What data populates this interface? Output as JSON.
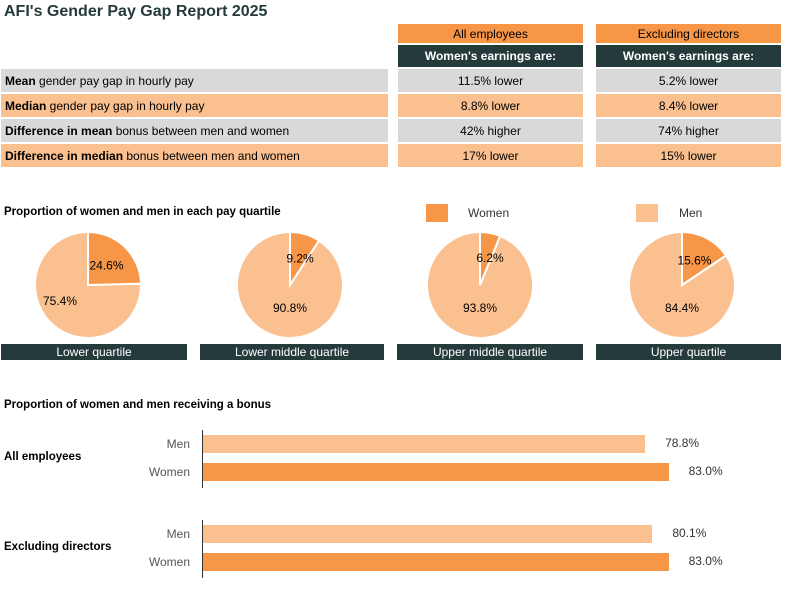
{
  "title": "AFI's Gender Pay Gap Report 2025",
  "table": {
    "columns": [
      "All employees",
      "Excluding directors"
    ],
    "subheader": "Women's earnings are:",
    "rows": [
      {
        "bold": "Mean",
        "rest": " gender pay gap in hourly pay",
        "values": [
          "11.5% lower",
          "5.2% lower"
        ]
      },
      {
        "bold": "Median",
        "rest": " gender pay gap in hourly pay",
        "values": [
          "8.8% lower",
          "8.4% lower"
        ]
      },
      {
        "bold": "Difference in mean",
        "rest": " bonus between men and women",
        "values": [
          "42% higher",
          "74% higher"
        ]
      },
      {
        "bold": "Difference in median",
        "rest": " bonus between men and women",
        "values": [
          "17% lower",
          "15% lower"
        ]
      }
    ]
  },
  "colors": {
    "women": "#f79646",
    "men": "#fac090",
    "gray": "#d9d9d9",
    "dark": "#253a3a"
  },
  "chart_data": [
    {
      "type": "pie",
      "title": "Proportion of women and men in each pay quartile",
      "legend": [
        "Women",
        "Men"
      ],
      "charts": [
        {
          "label": "Lower quartile",
          "women": 24.6,
          "men": 75.4,
          "women_label": "24.6%",
          "men_label": "75.4%"
        },
        {
          "label": "Lower middle quartile",
          "women": 9.2,
          "men": 90.8,
          "women_label": "9.2%",
          "men_label": "90.8%"
        },
        {
          "label": "Upper middle quartile",
          "women": 6.2,
          "men": 93.8,
          "women_label": "6.2%",
          "men_label": "93.8%"
        },
        {
          "label": "Upper quartile",
          "women": 15.6,
          "men": 84.4,
          "women_label": "15.6%",
          "men_label": "84.4%"
        }
      ]
    },
    {
      "type": "bar",
      "title": "Proportion of women and men receiving a bonus",
      "xlim": [
        0,
        100
      ],
      "groups": [
        {
          "name": "All employees",
          "bars": [
            {
              "category": "Men",
              "value": 78.8,
              "label": "78.8%"
            },
            {
              "category": "Women",
              "value": 83.0,
              "label": "83.0%"
            }
          ]
        },
        {
          "name": "Excluding directors",
          "bars": [
            {
              "category": "Men",
              "value": 80.1,
              "label": "80.1%"
            },
            {
              "category": "Women",
              "value": 83.0,
              "label": "83.0%"
            }
          ]
        }
      ]
    }
  ]
}
